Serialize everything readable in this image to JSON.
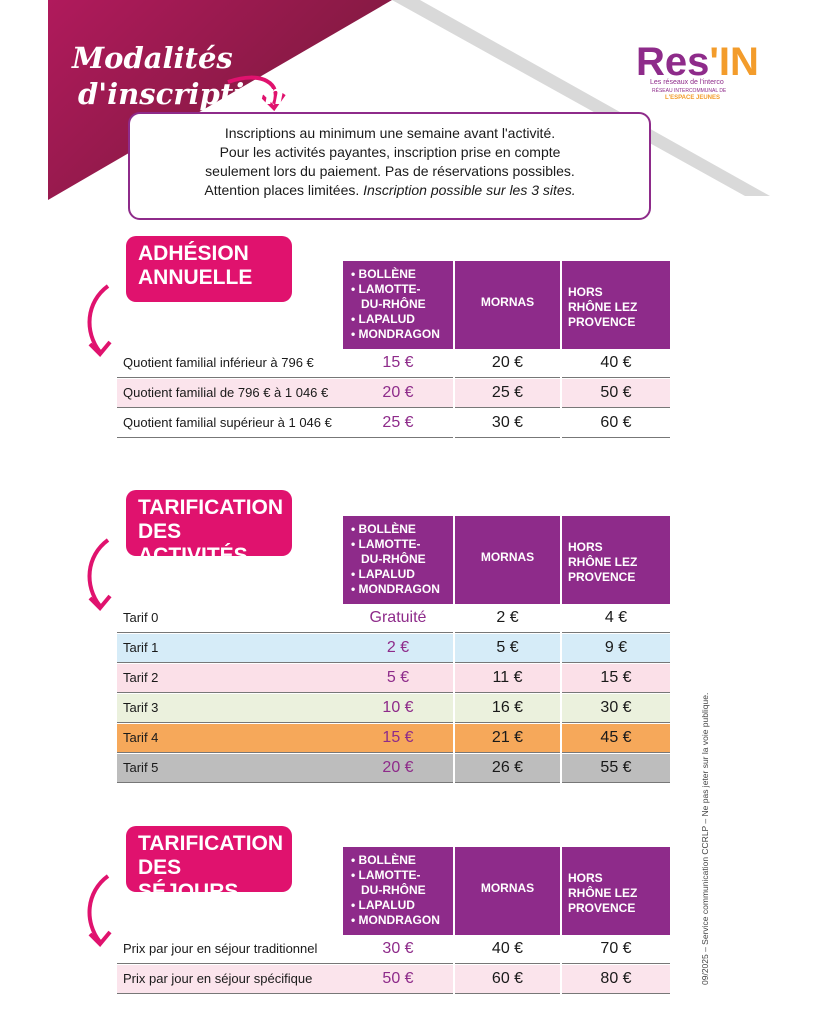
{
  "header": {
    "handwritten_title": [
      "Modalités",
      "d'inscriptions"
    ],
    "logo": {
      "main": "Res",
      "accent": "'IN",
      "tagline": "Les réseaux de l'interco",
      "sub1": "RÉSEAU INTERCOMMUNAL DE",
      "sub2": "L'ESPACE JEUNES"
    },
    "colors": {
      "magenta": "#e0126e",
      "purple": "#8e2b8a",
      "orange": "#f39c2b"
    }
  },
  "info": {
    "lines": [
      "Inscriptions au minimum une semaine avant l'activité.",
      "Pour les activités payantes, inscription prise en compte",
      "seulement lors du paiement. Pas de réservations possibles."
    ],
    "last_plain": "Attention places limitées. ",
    "last_italic": "Inscription possible sur les 3 sites."
  },
  "columns": {
    "col1": [
      "• BOLLÈNE",
      "• LAMOTTE-",
      "  DU-RHÔNE",
      "• LAPALUD",
      "• MONDRAGON"
    ],
    "col2": "MORNAS",
    "col3": [
      "HORS",
      "RHÔNE LEZ",
      "PROVENCE"
    ]
  },
  "adhesion": {
    "title": [
      "ADHÉSION",
      "ANNUELLE"
    ],
    "rows": [
      {
        "label": "Quotient familial inférieur à 796 €",
        "v1": "15 €",
        "v2": "20 €",
        "v3": "40 €",
        "bg": "#ffffff"
      },
      {
        "label": "Quotient familial de 796 € à 1 046 €",
        "v1": "20 €",
        "v2": "25 €",
        "v3": "50 €",
        "bg": "#fbe4ec"
      },
      {
        "label": "Quotient familial supérieur à 1 046 €",
        "v1": "25 €",
        "v2": "30 €",
        "v3": "60 €",
        "bg": "#ffffff"
      }
    ]
  },
  "activites": {
    "title": [
      "TARIFICATION",
      "DES ACTIVITÉS"
    ],
    "rows": [
      {
        "label": "Tarif 0",
        "v1": "Gratuité",
        "v2": "2 €",
        "v3": "4 €",
        "bg": "#ffffff"
      },
      {
        "label": "Tarif 1",
        "v1": "2 €",
        "v2": "5 €",
        "v3": "9 €",
        "bg": "#d6ecf8"
      },
      {
        "label": "Tarif 2",
        "v1": "5 €",
        "v2": "11 €",
        "v3": "15 €",
        "bg": "#fbe0e8"
      },
      {
        "label": "Tarif 3",
        "v1": "10 €",
        "v2": "16 €",
        "v3": "30 €",
        "bg": "#ebf1dd"
      },
      {
        "label": "Tarif 4",
        "v1": "15 €",
        "v2": "21 €",
        "v3": "45 €",
        "bg": "#f6a85a"
      },
      {
        "label": "Tarif 5",
        "v1": "20 €",
        "v2": "26 €",
        "v3": "55 €",
        "bg": "#bdbdbd"
      }
    ]
  },
  "sejours": {
    "title": [
      "TARIFICATION",
      "DES SÉJOURS"
    ],
    "rows": [
      {
        "label": "Prix par jour en séjour traditionnel",
        "v1": "30 €",
        "v2": "40 €",
        "v3": "70 €",
        "bg": "#ffffff"
      },
      {
        "label": "Prix par jour en séjour spécifique",
        "v1": "50 €",
        "v2": "60 €",
        "v3": "80 €",
        "bg": "#fbe4ec"
      }
    ]
  },
  "side_note": "09/2025 – Service communication CCRLP – Ne pas jeter sur la voie publique."
}
